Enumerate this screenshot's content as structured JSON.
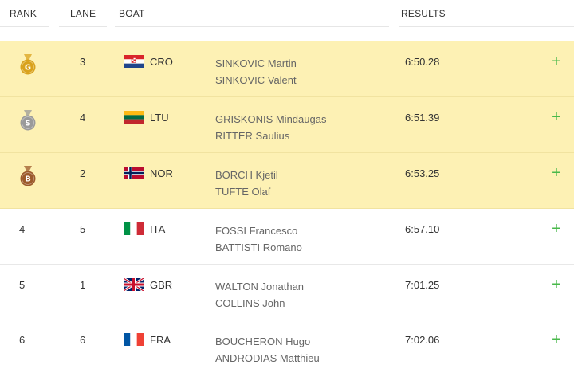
{
  "header": {
    "rank": "RANK",
    "lane": "LANE",
    "boat": "BOAT",
    "results": "RESULTS"
  },
  "rows": [
    {
      "rank": "",
      "medal": "G",
      "medal_color": "#d9a21c",
      "lane": "3",
      "country": "CRO",
      "flag": "croatia",
      "athletes": [
        "SINKOVIC Martin",
        "SINKOVIC Valent"
      ],
      "result": "6:50.28"
    },
    {
      "rank": "",
      "medal": "S",
      "medal_color": "#9a9a9a",
      "lane": "4",
      "country": "LTU",
      "flag": "lithuania",
      "athletes": [
        "GRISKONIS Mindaugas",
        "RITTER Saulius"
      ],
      "result": "6:51.39"
    },
    {
      "rank": "",
      "medal": "B",
      "medal_color": "#9c5a2b",
      "lane": "2",
      "country": "NOR",
      "flag": "norway",
      "athletes": [
        "BORCH Kjetil",
        "TUFTE Olaf"
      ],
      "result": "6:53.25"
    },
    {
      "rank": "4",
      "medal": "",
      "lane": "5",
      "country": "ITA",
      "flag": "italy",
      "athletes": [
        "FOSSI Francesco",
        "BATTISTI Romano"
      ],
      "result": "6:57.10"
    },
    {
      "rank": "5",
      "medal": "",
      "lane": "1",
      "country": "GBR",
      "flag": "uk",
      "athletes": [
        "WALTON Jonathan",
        "COLLINS John"
      ],
      "result": "7:01.25"
    },
    {
      "rank": "6",
      "medal": "",
      "lane": "6",
      "country": "FRA",
      "flag": "france",
      "athletes": [
        "BOUCHERON Hugo",
        "ANDRODIAS Matthieu"
      ],
      "result": "7:02.06"
    }
  ],
  "expand_symbol": "+",
  "colors": {
    "medal_row_bg": "#fdf1b4",
    "expand_green": "#48b84a"
  }
}
